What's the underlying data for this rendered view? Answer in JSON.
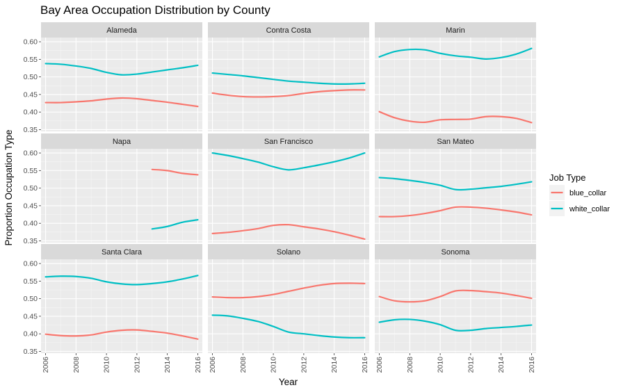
{
  "chart_data": {
    "type": "line",
    "title": "Bay Area Occupation Distribution by County",
    "xlabel": "Year",
    "ylabel": "Proportion Occupation Type",
    "xlim": [
      2005.7,
      2016.3
    ],
    "ylim": [
      0.345,
      0.612
    ],
    "x_ticks": [
      2006,
      2008,
      2010,
      2012,
      2014,
      2016
    ],
    "y_ticks": [
      0.35,
      0.4,
      0.45,
      0.5,
      0.55,
      0.6
    ],
    "x_tick_labels": [
      "2006",
      "2008",
      "2010",
      "2012",
      "2014",
      "2016"
    ],
    "y_tick_labels": [
      "0.35",
      "0.40",
      "0.45",
      "0.50",
      "0.55",
      "0.60"
    ],
    "legend": {
      "title": "Job Type",
      "position": "right",
      "entries": [
        {
          "name": "blue_collar",
          "color": "#F8766D"
        },
        {
          "name": "white_collar",
          "color": "#00BFC4"
        }
      ]
    },
    "panels": [
      {
        "name": "Alameda",
        "series": [
          {
            "name": "blue_collar",
            "x": [
              2006,
              2007,
              2008,
              2009,
              2010,
              2011,
              2012,
              2013,
              2014,
              2015,
              2016
            ],
            "y": [
              0.427,
              0.427,
              0.429,
              0.432,
              0.437,
              0.44,
              0.438,
              0.433,
              0.428,
              0.422,
              0.416
            ]
          },
          {
            "name": "white_collar",
            "x": [
              2006,
              2007,
              2008,
              2009,
              2010,
              2011,
              2012,
              2013,
              2014,
              2015,
              2016
            ],
            "y": [
              0.538,
              0.536,
              0.531,
              0.524,
              0.513,
              0.506,
              0.508,
              0.514,
              0.52,
              0.526,
              0.533
            ]
          }
        ]
      },
      {
        "name": "Contra Costa",
        "series": [
          {
            "name": "blue_collar",
            "x": [
              2006,
              2007,
              2008,
              2009,
              2010,
              2011,
              2012,
              2013,
              2014,
              2015,
              2016
            ],
            "y": [
              0.454,
              0.448,
              0.444,
              0.443,
              0.444,
              0.447,
              0.453,
              0.458,
              0.461,
              0.463,
              0.463
            ]
          },
          {
            "name": "white_collar",
            "x": [
              2006,
              2007,
              2008,
              2009,
              2010,
              2011,
              2012,
              2013,
              2014,
              2015,
              2016
            ],
            "y": [
              0.511,
              0.507,
              0.503,
              0.498,
              0.493,
              0.488,
              0.485,
              0.482,
              0.48,
              0.48,
              0.482
            ]
          }
        ]
      },
      {
        "name": "Marin",
        "series": [
          {
            "name": "blue_collar",
            "x": [
              2006,
              2007,
              2008,
              2009,
              2010,
              2011,
              2012,
              2013,
              2014,
              2015,
              2016
            ],
            "y": [
              0.401,
              0.384,
              0.374,
              0.371,
              0.378,
              0.379,
              0.38,
              0.387,
              0.387,
              0.382,
              0.37
            ]
          },
          {
            "name": "white_collar",
            "x": [
              2006,
              2007,
              2008,
              2009,
              2010,
              2011,
              2012,
              2013,
              2014,
              2015,
              2016
            ],
            "y": [
              0.557,
              0.572,
              0.578,
              0.577,
              0.567,
              0.56,
              0.556,
              0.551,
              0.555,
              0.565,
              0.581
            ]
          }
        ]
      },
      {
        "name": "Napa",
        "series": [
          {
            "name": "blue_collar",
            "x": [
              2013,
              2014,
              2015,
              2016
            ],
            "y": [
              0.553,
              0.55,
              0.542,
              0.538
            ]
          },
          {
            "name": "white_collar",
            "x": [
              2013,
              2014,
              2015,
              2016
            ],
            "y": [
              0.384,
              0.391,
              0.403,
              0.41
            ]
          }
        ]
      },
      {
        "name": "San Francisco",
        "series": [
          {
            "name": "blue_collar",
            "x": [
              2006,
              2007,
              2008,
              2009,
              2010,
              2011,
              2012,
              2013,
              2014,
              2015,
              2016
            ],
            "y": [
              0.371,
              0.374,
              0.379,
              0.385,
              0.394,
              0.396,
              0.39,
              0.384,
              0.376,
              0.366,
              0.355
            ]
          },
          {
            "name": "white_collar",
            "x": [
              2006,
              2007,
              2008,
              2009,
              2010,
              2011,
              2012,
              2013,
              2014,
              2015,
              2016
            ],
            "y": [
              0.6,
              0.593,
              0.584,
              0.574,
              0.561,
              0.552,
              0.558,
              0.566,
              0.575,
              0.586,
              0.6
            ]
          }
        ]
      },
      {
        "name": "San Mateo",
        "series": [
          {
            "name": "blue_collar",
            "x": [
              2006,
              2007,
              2008,
              2009,
              2010,
              2011,
              2012,
              2013,
              2014,
              2015,
              2016
            ],
            "y": [
              0.419,
              0.419,
              0.422,
              0.428,
              0.436,
              0.446,
              0.446,
              0.443,
              0.438,
              0.432,
              0.424
            ]
          },
          {
            "name": "white_collar",
            "x": [
              2006,
              2007,
              2008,
              2009,
              2010,
              2011,
              2012,
              2013,
              2014,
              2015,
              2016
            ],
            "y": [
              0.53,
              0.527,
              0.522,
              0.516,
              0.508,
              0.496,
              0.497,
              0.501,
              0.505,
              0.511,
              0.518
            ]
          }
        ]
      },
      {
        "name": "Santa Clara",
        "series": [
          {
            "name": "blue_collar",
            "x": [
              2006,
              2007,
              2008,
              2009,
              2010,
              2011,
              2012,
              2013,
              2014,
              2015,
              2016
            ],
            "y": [
              0.399,
              0.395,
              0.394,
              0.397,
              0.405,
              0.41,
              0.411,
              0.407,
              0.402,
              0.394,
              0.385
            ]
          },
          {
            "name": "white_collar",
            "x": [
              2006,
              2007,
              2008,
              2009,
              2010,
              2011,
              2012,
              2013,
              2014,
              2015,
              2016
            ],
            "y": [
              0.562,
              0.564,
              0.563,
              0.558,
              0.548,
              0.542,
              0.54,
              0.543,
              0.548,
              0.556,
              0.566
            ]
          }
        ]
      },
      {
        "name": "Solano",
        "series": [
          {
            "name": "blue_collar",
            "x": [
              2006,
              2007,
              2008,
              2009,
              2010,
              2011,
              2012,
              2013,
              2014,
              2015,
              2016
            ],
            "y": [
              0.505,
              0.503,
              0.503,
              0.506,
              0.512,
              0.521,
              0.53,
              0.538,
              0.543,
              0.544,
              0.543
            ]
          },
          {
            "name": "white_collar",
            "x": [
              2006,
              2007,
              2008,
              2009,
              2010,
              2011,
              2012,
              2013,
              2014,
              2015,
              2016
            ],
            "y": [
              0.453,
              0.451,
              0.444,
              0.435,
              0.421,
              0.405,
              0.4,
              0.395,
              0.391,
              0.389,
              0.389
            ]
          }
        ]
      },
      {
        "name": "Sonoma",
        "series": [
          {
            "name": "blue_collar",
            "x": [
              2006,
              2007,
              2008,
              2009,
              2010,
              2011,
              2012,
              2013,
              2014,
              2015,
              2016
            ],
            "y": [
              0.506,
              0.494,
              0.491,
              0.494,
              0.506,
              0.522,
              0.523,
              0.52,
              0.516,
              0.509,
              0.501
            ]
          },
          {
            "name": "white_collar",
            "x": [
              2006,
              2007,
              2008,
              2009,
              2010,
              2011,
              2012,
              2013,
              2014,
              2015,
              2016
            ],
            "y": [
              0.433,
              0.44,
              0.441,
              0.436,
              0.426,
              0.41,
              0.41,
              0.415,
              0.418,
              0.421,
              0.425
            ]
          }
        ]
      }
    ]
  }
}
